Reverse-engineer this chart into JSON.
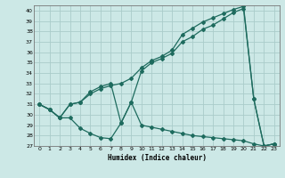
{
  "xlabel": "Humidex (Indice chaleur)",
  "bg_color": "#cce8e6",
  "grid_color": "#aaccca",
  "line_color": "#1e6b5e",
  "xlim": [
    -0.5,
    23.5
  ],
  "ylim": [
    27,
    40.5
  ],
  "yticks": [
    27,
    28,
    29,
    30,
    31,
    32,
    33,
    34,
    35,
    36,
    37,
    38,
    39,
    40
  ],
  "xticks": [
    0,
    1,
    2,
    3,
    4,
    5,
    6,
    7,
    8,
    9,
    10,
    11,
    12,
    13,
    14,
    15,
    16,
    17,
    18,
    19,
    20,
    21,
    22,
    23
  ],
  "series1_x": [
    0,
    1,
    2,
    3,
    4,
    5,
    6,
    7,
    8,
    9,
    10,
    11,
    12,
    13,
    14,
    15,
    16,
    17,
    18,
    19,
    20,
    21,
    22,
    23
  ],
  "series1_y": [
    31.0,
    30.5,
    29.7,
    29.7,
    28.7,
    28.2,
    27.8,
    27.7,
    29.2,
    31.2,
    29.0,
    28.8,
    28.6,
    28.4,
    28.2,
    28.0,
    27.9,
    27.8,
    27.7,
    27.6,
    27.5,
    27.2,
    27.0,
    27.2
  ],
  "series2_x": [
    0,
    1,
    2,
    3,
    4,
    5,
    6,
    7,
    8,
    9,
    10,
    11,
    12,
    13,
    14,
    15,
    16,
    17,
    18,
    19,
    20,
    21,
    22,
    23
  ],
  "series2_y": [
    31.0,
    30.5,
    29.7,
    31.0,
    31.2,
    32.0,
    32.5,
    32.8,
    33.0,
    33.5,
    34.5,
    35.2,
    35.6,
    36.2,
    37.7,
    38.3,
    38.9,
    39.3,
    39.7,
    40.1,
    40.4,
    31.5,
    27.0,
    27.2
  ],
  "series3_x": [
    0,
    1,
    2,
    3,
    4,
    5,
    6,
    7,
    8,
    9,
    10,
    11,
    12,
    13,
    14,
    15,
    16,
    17,
    18,
    19,
    20,
    21,
    22,
    23
  ],
  "series3_y": [
    31.0,
    30.5,
    29.7,
    31.0,
    31.2,
    32.2,
    32.7,
    33.0,
    29.2,
    31.2,
    34.2,
    35.0,
    35.4,
    35.9,
    37.0,
    37.5,
    38.2,
    38.6,
    39.2,
    39.8,
    40.2,
    31.5,
    27.0,
    27.2
  ]
}
